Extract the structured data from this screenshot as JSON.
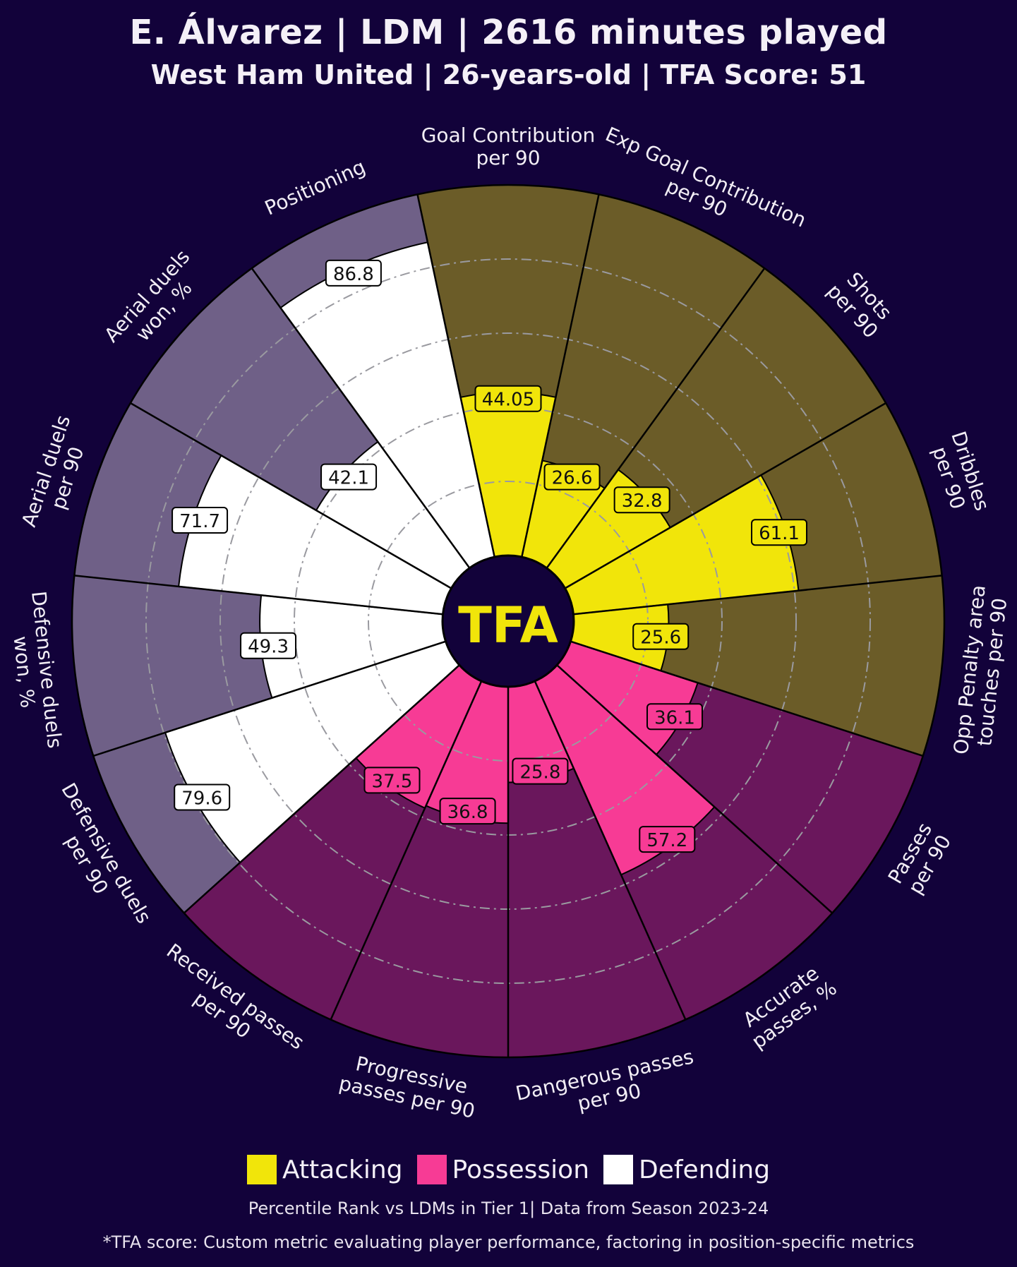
{
  "header": {
    "title": "E. Álvarez | LDM | 2616 minutes played",
    "subtitle": "West Ham United | 26-years-old | TFA Score: 51"
  },
  "logo_text": "TFA",
  "colors": {
    "background": "#12023a",
    "attacking": "#f1e50a",
    "attacking_bg": "#6b5c28",
    "possession": "#f73b95",
    "possession_bg": "#6a175c",
    "defending": "#ffffff",
    "defending_bg": "#6f6087"
  },
  "legend": {
    "attacking": "Attacking",
    "possession": "Possession",
    "defending": "Defending"
  },
  "footnotes": {
    "line1": "Percentile Rank vs LDMs in Tier 1| Data from Season 2023-24",
    "line2": "*TFA score: Custom metric evaluating player performance, factoring in position-specific metrics"
  },
  "chart_data": {
    "type": "radar-bar",
    "value_range": [
      0,
      100
    ],
    "grid": true,
    "legend_position": "bottom",
    "metrics": [
      {
        "label": [
          "Goal Contribution",
          "per 90"
        ],
        "value": 44.05,
        "value_label": "44.05",
        "group": "attacking"
      },
      {
        "label": [
          "Exp Goal Contribution",
          "per 90"
        ],
        "value": 26.6,
        "value_label": "26.6",
        "group": "attacking"
      },
      {
        "label": [
          "Shots",
          "per 90"
        ],
        "value": 32.8,
        "value_label": "32.8",
        "group": "attacking"
      },
      {
        "label": [
          "Dribbles",
          "per 90"
        ],
        "value": 61.1,
        "value_label": "61.1",
        "group": "attacking"
      },
      {
        "label": [
          "Opp Penalty area",
          "touches per 90"
        ],
        "value": 25.6,
        "value_label": "25.6",
        "group": "attacking"
      },
      {
        "label": [
          "Passes",
          "per 90"
        ],
        "value": 36.1,
        "value_label": "36.1",
        "group": "possession"
      },
      {
        "label": [
          "Accurate",
          "passes, %"
        ],
        "value": 57.2,
        "value_label": "57.2",
        "group": "possession"
      },
      {
        "label": [
          "Dangerous passes",
          "per 90"
        ],
        "value": 25.8,
        "value_label": "25.8",
        "group": "possession"
      },
      {
        "label": [
          "Progressive",
          "passes per 90"
        ],
        "value": 36.8,
        "value_label": "36.8",
        "group": "possession"
      },
      {
        "label": [
          "Received passes",
          "per 90"
        ],
        "value": 37.5,
        "value_label": "37.5",
        "group": "possession"
      },
      {
        "label": [
          "Defensive duels",
          "per 90"
        ],
        "value": 79.6,
        "value_label": "79.6",
        "group": "defending"
      },
      {
        "label": [
          "Defensive duels",
          "won, %"
        ],
        "value": 49.3,
        "value_label": "49.3",
        "group": "defending"
      },
      {
        "label": [
          "Aerial duels",
          "per 90"
        ],
        "value": 71.7,
        "value_label": "71.7",
        "group": "defending"
      },
      {
        "label": [
          "Aerial duels",
          "won, %"
        ],
        "value": 42.1,
        "value_label": "42.1",
        "group": "defending"
      },
      {
        "label": [
          "Positioning"
        ],
        "value": 86.8,
        "value_label": "86.8",
        "group": "defending"
      }
    ]
  }
}
